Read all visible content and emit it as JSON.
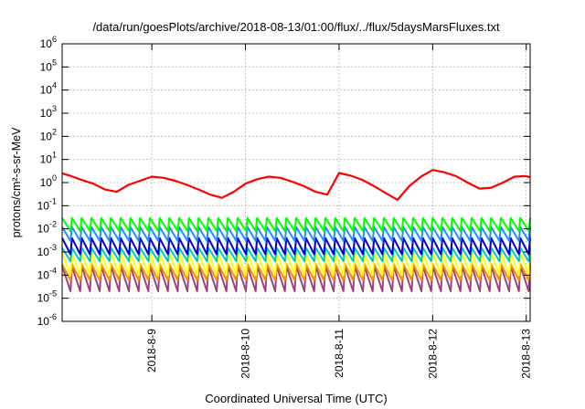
{
  "chart_data": {
    "type": "line",
    "title": "/data/run/goesPlots/archive/2018-08-13/01:00/flux/../flux/5daysMarsFluxes.txt",
    "xlabel": "Coordinated Universal Time (UTC)",
    "ylabel": "protons/cm²-s-sr-MeV",
    "y_scale": "log",
    "ylim": [
      1e-06,
      1000000.0
    ],
    "y_tick_exponents": [
      -6,
      -5,
      -4,
      -3,
      -2,
      -1,
      0,
      1,
      2,
      3,
      4,
      5,
      6
    ],
    "y_tick_base": "10",
    "xlim": [
      "2018-08-08 01:00",
      "2018-08-13 01:00"
    ],
    "x_ticks": [
      {
        "label": "2018-8-9",
        "value": "2018-08-09"
      },
      {
        "label": "2018-8-10",
        "value": "2018-08-10"
      },
      {
        "label": "2018-8-11",
        "value": "2018-08-11"
      },
      {
        "label": "2018-8-12",
        "value": "2018-08-12"
      },
      {
        "label": "2018-8-13",
        "value": "2018-08-13"
      }
    ],
    "grid": true,
    "legend": "none",
    "series": [
      {
        "color": "#ff0000",
        "style": "trace",
        "x": [
          "2018-08-08 01:00",
          "2018-08-08 03:00",
          "2018-08-08 06:00",
          "2018-08-08 09:00",
          "2018-08-08 12:00",
          "2018-08-08 15:00",
          "2018-08-08 18:00",
          "2018-08-08 21:00",
          "2018-08-09 00:00",
          "2018-08-09 03:00",
          "2018-08-09 06:00",
          "2018-08-09 09:00",
          "2018-08-09 12:00",
          "2018-08-09 15:00",
          "2018-08-09 18:00",
          "2018-08-09 21:00",
          "2018-08-10 00:00",
          "2018-08-10 03:00",
          "2018-08-10 06:00",
          "2018-08-10 09:00",
          "2018-08-10 12:00",
          "2018-08-10 15:00",
          "2018-08-10 18:00",
          "2018-08-10 21:00",
          "2018-08-11 00:00",
          "2018-08-11 03:00",
          "2018-08-11 06:00",
          "2018-08-11 09:00",
          "2018-08-11 12:00",
          "2018-08-11 15:00",
          "2018-08-11 18:00",
          "2018-08-11 21:00",
          "2018-08-12 00:00",
          "2018-08-12 03:00",
          "2018-08-12 06:00",
          "2018-08-12 09:00",
          "2018-08-12 12:00",
          "2018-08-12 15:00",
          "2018-08-12 18:00",
          "2018-08-12 21:00",
          "2018-08-13 00:00",
          "2018-08-13 01:00"
        ],
        "y": [
          2.5,
          2.0,
          1.3,
          0.9,
          0.5,
          0.4,
          0.8,
          1.2,
          1.8,
          1.6,
          1.2,
          0.8,
          0.5,
          0.3,
          0.22,
          0.4,
          0.9,
          1.4,
          1.8,
          1.6,
          1.1,
          0.7,
          0.4,
          0.3,
          2.6,
          2.0,
          1.3,
          0.7,
          0.35,
          0.18,
          0.7,
          1.8,
          3.5,
          2.8,
          1.9,
          1.0,
          0.55,
          0.6,
          1.0,
          1.8,
          1.9,
          1.7
        ]
      },
      {
        "color": "#00ff00",
        "style": "band",
        "x_start": "2018-08-08 01:00",
        "x_end": "2018-08-13 01:00",
        "peak": 0.03,
        "trough": 0.008,
        "cycles": 48
      },
      {
        "color": "#1e90ff",
        "style": "band",
        "x_start": "2018-08-08 01:00",
        "x_end": "2018-08-13 01:00",
        "peak": 0.012,
        "trough": 0.003,
        "cycles": 48
      },
      {
        "color": "#0000cd",
        "style": "band",
        "x_start": "2018-08-08 01:00",
        "x_end": "2018-08-13 01:00",
        "peak": 0.004,
        "trough": 0.0008,
        "cycles": 48
      },
      {
        "color": "#00c8b4",
        "style": "band",
        "x_start": "2018-08-08 01:00",
        "x_end": "2018-08-13 01:00",
        "peak": 0.0015,
        "trough": 0.0004,
        "cycles": 48
      },
      {
        "color": "#ffff00",
        "style": "band",
        "x_start": "2018-08-08 01:00",
        "x_end": "2018-08-13 01:00",
        "peak": 0.0009,
        "trough": 0.0001,
        "cycles": 48
      },
      {
        "color": "#ff8c00",
        "style": "band",
        "x_start": "2018-08-08 01:00",
        "x_end": "2018-08-13 01:00",
        "peak": 0.0003,
        "trough": 6e-05,
        "cycles": 48
      },
      {
        "color": "#a0407a",
        "style": "band",
        "x_start": "2018-08-08 01:00",
        "x_end": "2018-08-13 01:00",
        "peak": 0.00025,
        "trough": 2e-05,
        "cycles": 48
      }
    ]
  }
}
